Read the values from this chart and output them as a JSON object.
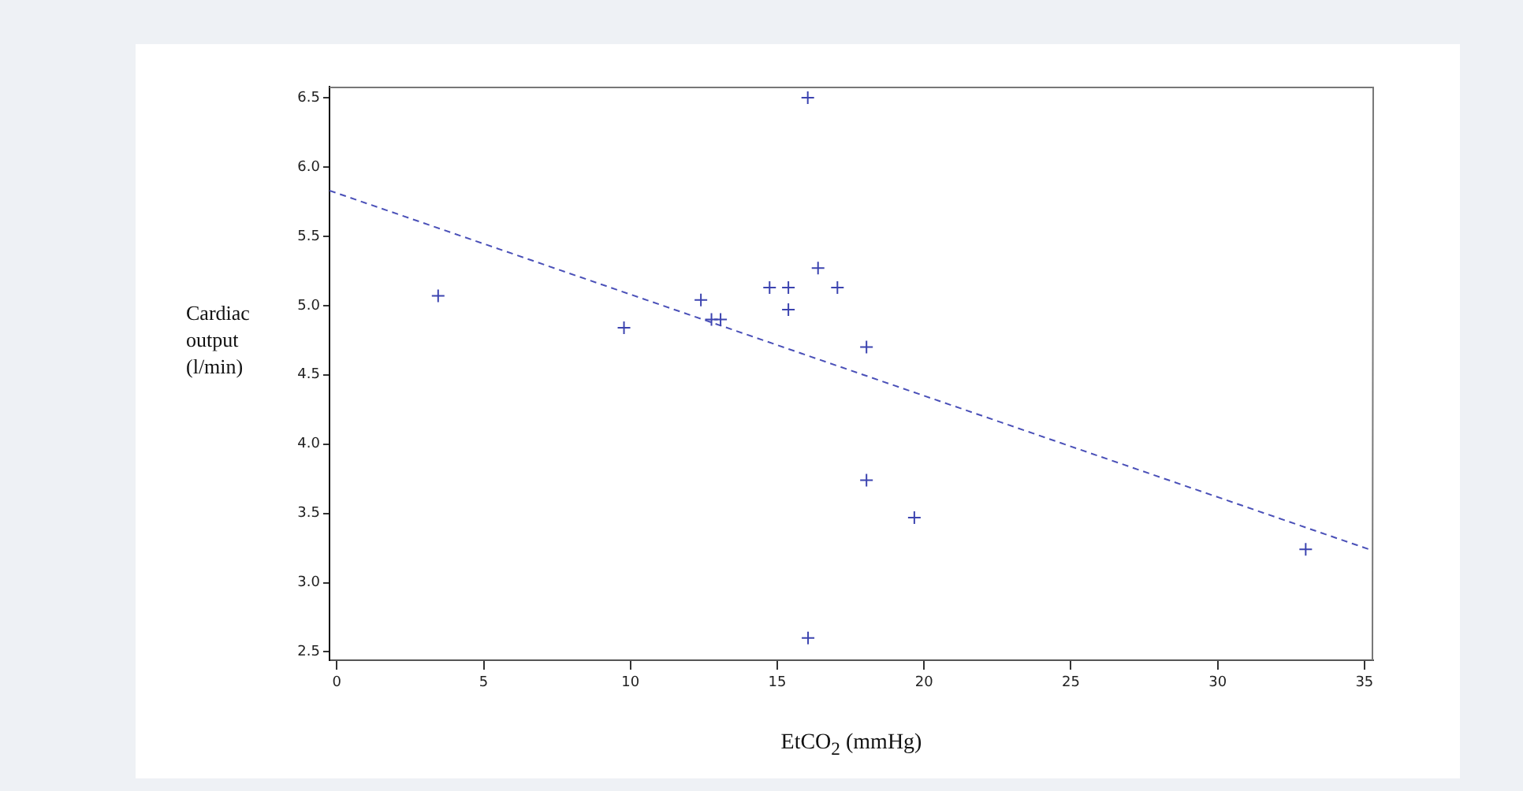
{
  "chart_data": {
    "type": "scatter",
    "xlabel": "EtCO$_{2}$ (mmHg)",
    "ylabel": "Cardiac output (l/min)",
    "xlim": [
      -0.25,
      35.3
    ],
    "ylim": [
      2.44,
      6.58
    ],
    "xticks": [
      0,
      5,
      10,
      15,
      20,
      25,
      30,
      35
    ],
    "yticks": [
      {
        "value": 2.5,
        "label": "2.5"
      },
      {
        "value": 3,
        "label": "3.0"
      },
      {
        "value": 3.5,
        "label": "3.5"
      },
      {
        "value": 4,
        "label": "4.0"
      },
      {
        "value": 4.5,
        "label": "4.5"
      },
      {
        "value": 5,
        "label": "5.0"
      },
      {
        "value": 5.5,
        "label": "5.5"
      },
      {
        "value": 6,
        "label": "6.0"
      },
      {
        "value": 6.5,
        "label": "6.5"
      }
    ],
    "grid": false,
    "legend": false,
    "series": [
      {
        "type": "scatter",
        "color": "#3c44b0",
        "marker": "cross",
        "x": [
          3.45,
          9.78,
          12.4,
          12.76,
          13.07,
          14.74,
          15.38,
          15.38,
          16.04,
          16.39,
          17.05,
          18.04,
          18.04,
          19.67,
          33.0,
          16.05
        ],
        "values": [
          5.07,
          4.84,
          5.04,
          4.9,
          4.9,
          5.13,
          5.13,
          4.97,
          6.5,
          5.27,
          5.13,
          4.7,
          3.74,
          3.47,
          3.24,
          2.6
        ]
      },
      {
        "type": "line",
        "color": "#4a50b8",
        "marker": "none",
        "line_style": "dashed",
        "x": [
          -0.25,
          35.3
        ],
        "values": [
          5.83,
          3.23
        ]
      }
    ]
  }
}
